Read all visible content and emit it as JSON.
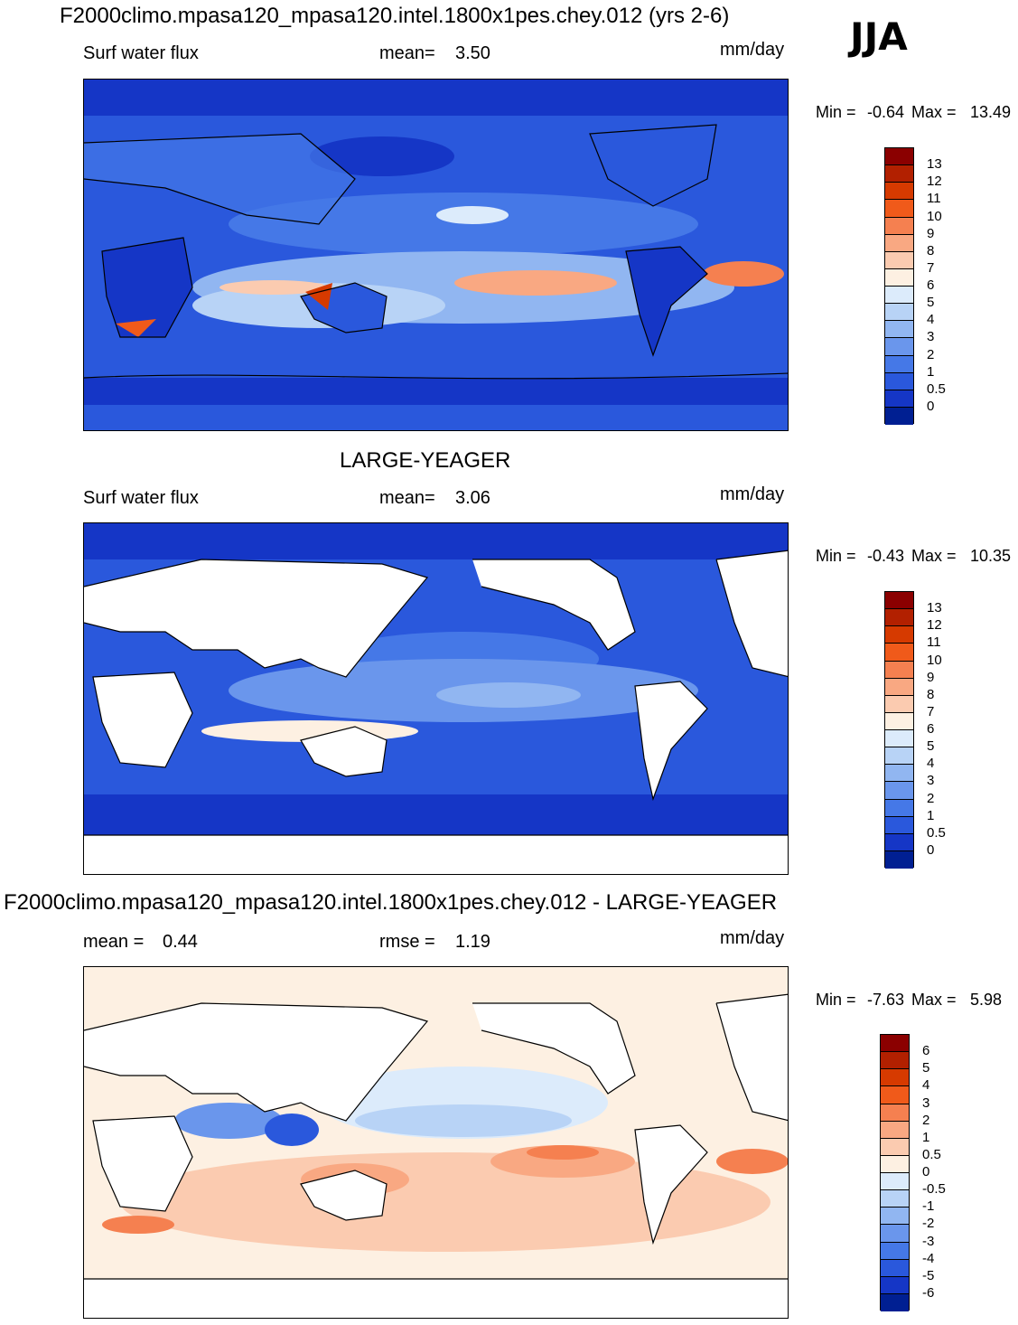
{
  "header": {
    "title": "F2000climo.mpasa120_mpasa120.intel.1800x1pes.chey.012 (yrs 2-6)",
    "season": "JJA"
  },
  "chart_data": [
    {
      "type": "heatmap",
      "field_label": "Surf water flux",
      "stat_label": "mean=",
      "stat_value": "3.50",
      "units": "mm/day",
      "min_label": "Min =",
      "min_value": "-0.64",
      "max_label": "Max =",
      "max_value": "13.49",
      "colorbar": {
        "levels": [
          "13",
          "12",
          "11",
          "10",
          "9",
          "8",
          "7",
          "6",
          "5",
          "4",
          "3",
          "2",
          "1",
          "0.5",
          "0"
        ],
        "colors": [
          "#8b0000",
          "#b22000",
          "#d63a00",
          "#f05a1a",
          "#f58050",
          "#f9a882",
          "#fbcbb0",
          "#fdf0e2",
          "#dcebfb",
          "#b8d3f6",
          "#91b6f1",
          "#6a96ec",
          "#4578e7",
          "#2a58dc",
          "#1536c6",
          "#001f92"
        ]
      }
    },
    {
      "type": "heatmap",
      "panel_title": "LARGE-YEAGER",
      "field_label": "Surf water flux",
      "stat_label": "mean=",
      "stat_value": "3.06",
      "units": "mm/day",
      "min_label": "Min =",
      "min_value": "-0.43",
      "max_label": "Max =",
      "max_value": "10.35",
      "colorbar": {
        "levels": [
          "13",
          "12",
          "11",
          "10",
          "9",
          "8",
          "7",
          "6",
          "5",
          "4",
          "3",
          "2",
          "1",
          "0.5",
          "0"
        ],
        "colors": [
          "#8b0000",
          "#b22000",
          "#d63a00",
          "#f05a1a",
          "#f58050",
          "#f9a882",
          "#fbcbb0",
          "#fdf0e2",
          "#dcebfb",
          "#b8d3f6",
          "#91b6f1",
          "#6a96ec",
          "#4578e7",
          "#2a58dc",
          "#1536c6",
          "#001f92"
        ]
      }
    },
    {
      "type": "heatmap",
      "panel_title": "F2000climo.mpasa120_mpasa120.intel.1800x1pes.chey.012 - LARGE-YEAGER",
      "field_label": "mean =",
      "field_value": "0.44",
      "stat_label": "rmse =",
      "stat_value": "1.19",
      "units": "mm/day",
      "min_label": "Min =",
      "min_value": "-7.63",
      "max_label": "Max =",
      "max_value": "5.98",
      "colorbar": {
        "levels": [
          "6",
          "5",
          "4",
          "3",
          "2",
          "1",
          "0.5",
          "0",
          "-0.5",
          "-1",
          "-2",
          "-3",
          "-4",
          "-5",
          "-6"
        ],
        "colors": [
          "#8b0000",
          "#b22000",
          "#d63a00",
          "#f05a1a",
          "#f58050",
          "#f9a882",
          "#fbcbb0",
          "#fdf0e2",
          "#dcebfb",
          "#b8d3f6",
          "#91b6f1",
          "#6a96ec",
          "#4578e7",
          "#2a58dc",
          "#1536c6",
          "#001f92"
        ]
      }
    }
  ]
}
